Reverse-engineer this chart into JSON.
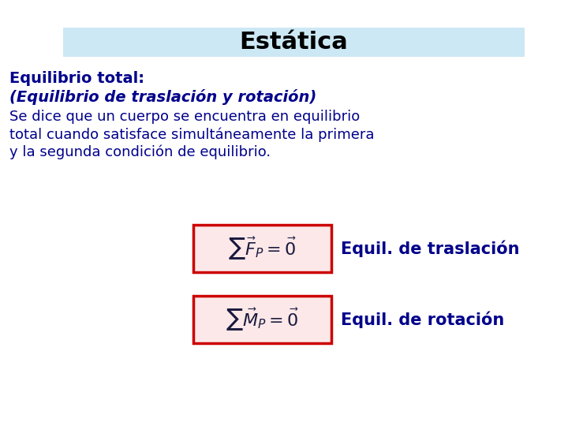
{
  "title": "Estática",
  "title_bg_color": "#cce8f4",
  "title_text_color": "#000000",
  "title_fontsize": 22,
  "line1": "Equilibrio total:",
  "line2": "(Equilibrio de traslación y rotación)",
  "line3": "Se dice que un cuerpo se encuentra en equilibrio",
  "line4": "total cuando satisface simultáneamente la primera",
  "line5": "y la segunda condición de equilibrio.",
  "bold_color": "#00008b",
  "dark_blue": "#00008b",
  "body_fontsize": 13,
  "label1": "Equil. de traslación",
  "label2": "Equil. de rotación",
  "formula_fontsize": 16,
  "label_fontsize": 15,
  "formula_box_facecolor": "#fce8e8",
  "formula_border_color": "#cc0000",
  "background_color": "#ffffff"
}
